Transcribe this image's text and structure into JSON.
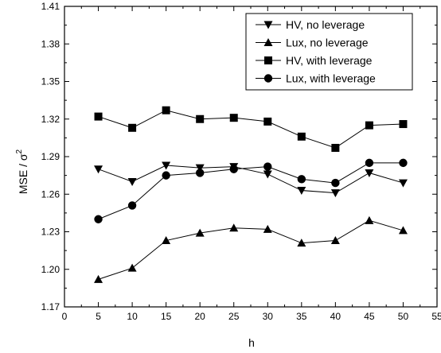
{
  "chart_data": {
    "type": "line",
    "xlabel": "h",
    "ylabel_main": "MSE / σ",
    "ylabel_sup": "2",
    "xlim": [
      0,
      55
    ],
    "ylim": [
      1.17,
      1.41
    ],
    "xticks": [
      "0",
      "5",
      "10",
      "15",
      "20",
      "25",
      "30",
      "35",
      "40",
      "45",
      "50",
      "55"
    ],
    "yticks": [
      "1.17",
      "1.20",
      "1.23",
      "1.26",
      "1.29",
      "1.32",
      "1.35",
      "1.38",
      "1.41"
    ],
    "grid": false,
    "legend_position": "top-right",
    "x": [
      5,
      10,
      15,
      20,
      25,
      30,
      35,
      40,
      45,
      50
    ],
    "series": [
      {
        "name": "HV, no leverage",
        "marker": "triangle-down",
        "values": [
          1.28,
          1.27,
          1.283,
          1.281,
          1.282,
          1.276,
          1.263,
          1.261,
          1.277,
          1.269
        ]
      },
      {
        "name": "Lux, no leverage",
        "marker": "triangle-up",
        "values": [
          1.192,
          1.201,
          1.223,
          1.229,
          1.233,
          1.232,
          1.221,
          1.223,
          1.239,
          1.231
        ]
      },
      {
        "name": "HV, with leverage",
        "marker": "square",
        "values": [
          1.322,
          1.313,
          1.327,
          1.32,
          1.321,
          1.318,
          1.306,
          1.297,
          1.315,
          1.316
        ]
      },
      {
        "name": "Lux, with leverage",
        "marker": "circle",
        "values": [
          1.24,
          1.251,
          1.275,
          1.277,
          1.28,
          1.282,
          1.272,
          1.269,
          1.285,
          1.285
        ]
      }
    ]
  }
}
